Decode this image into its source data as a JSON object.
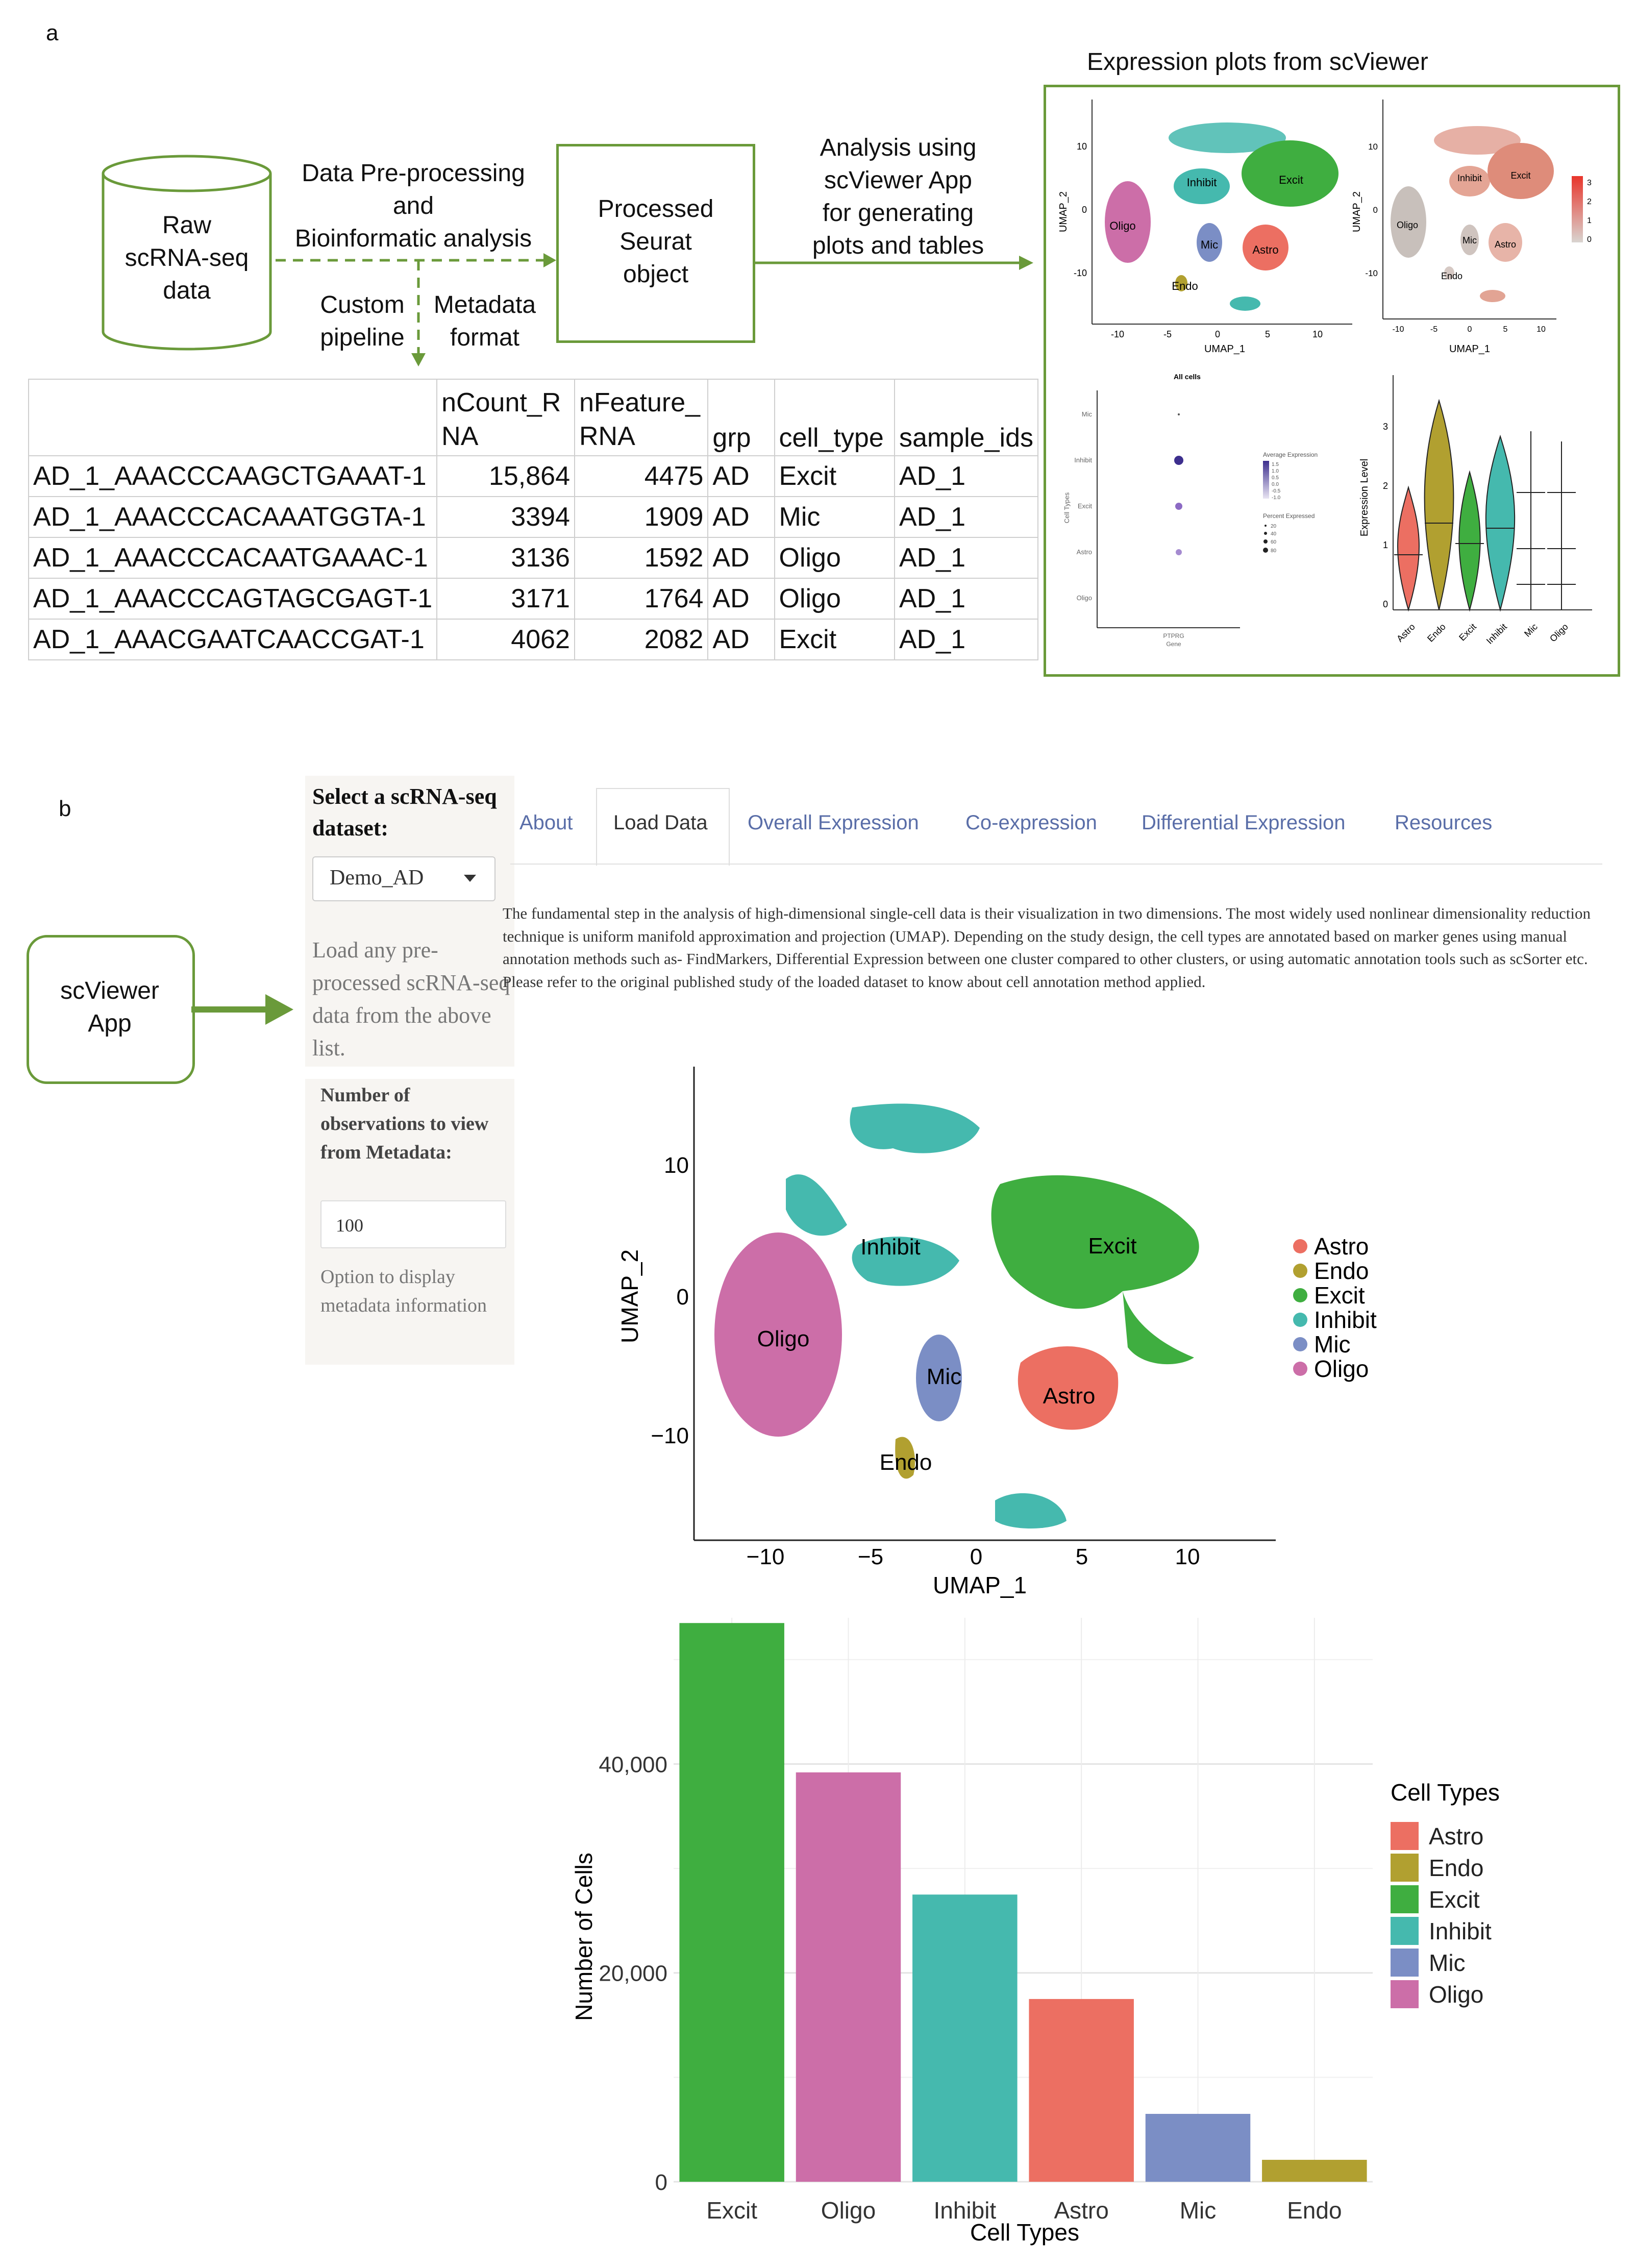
{
  "panel_a": {
    "label": "a",
    "raw_data": [
      "Raw",
      "scRNA-seq",
      "data"
    ],
    "preprocess": [
      "Data Pre-processing",
      "and",
      "Bioinformatic analysis"
    ],
    "custom": [
      "Custom",
      "pipeline"
    ],
    "metadata": [
      "Metadata",
      "format"
    ],
    "seurat": [
      "Processed",
      "Seurat",
      "object"
    ],
    "analysis": [
      "Analysis using",
      "scViewer App",
      "for generating",
      "plots and tables"
    ],
    "expr_title": "Expression plots from scViewer",
    "table": {
      "headers": [
        "",
        "nCount_R\nNA",
        "nFeature_\nRNA",
        "grp",
        "cell_type",
        "sample_ids"
      ],
      "rows": [
        [
          "AD_1_AAACCCAAGCTGAAAT-1",
          "15,864",
          "4475",
          "AD",
          "Excit",
          "AD_1"
        ],
        [
          "AD_1_AAACCCACAAATGGTA-1",
          "3394",
          "1909",
          "AD",
          "Mic",
          "AD_1"
        ],
        [
          "AD_1_AAACCCACAATGAAAC-1",
          "3136",
          "1592",
          "AD",
          "Oligo",
          "AD_1"
        ],
        [
          "AD_1_AAACCCAGTAGCGAGT-1",
          "3171",
          "1764",
          "AD",
          "Oligo",
          "AD_1"
        ],
        [
          "AD_1_AAACGAATCAACCGAT-1",
          "4062",
          "2082",
          "AD",
          "Excit",
          "AD_1"
        ]
      ]
    },
    "mini_umap": {
      "ylabel": "UMAP_2",
      "xlabel": "UMAP_1",
      "xticks": [
        "-10",
        "-5",
        "0",
        "5",
        "10"
      ],
      "yticks": [
        "10",
        "0",
        "-10"
      ],
      "labels": [
        "Inhibit",
        "Excit",
        "Oligo",
        "Mic",
        "Astro",
        "Endo"
      ]
    },
    "feature_plot": {
      "ylabel": "UMAP_2",
      "xlabel": "UMAP_1",
      "xticks": [
        "-10",
        "-5",
        "0",
        "5",
        "10"
      ],
      "yticks": [
        "10",
        "0",
        "-10"
      ],
      "labels": [
        "Inhibit",
        "Excit",
        "Oligo",
        "Mic",
        "Astro",
        "Endo"
      ],
      "scale": [
        "3",
        "2",
        "1",
        "0"
      ]
    },
    "dot_plot": {
      "title": "All cells",
      "rows": [
        "Mic",
        "Inhibit",
        "Excit",
        "Astro",
        "Oligo"
      ],
      "ylabel": "Cell Types",
      "xtick": "PTPRG",
      "xlabel": "Gene",
      "legend_avg": "Average Expression",
      "legend_avg_vals": [
        "1.5",
        "1.0",
        "0.5",
        "0.0",
        "-0.5",
        "-1.0"
      ],
      "legend_pct": "Percent Expressed",
      "legend_pct_vals": [
        "20",
        "40",
        "60",
        "80"
      ]
    },
    "violin": {
      "ylabel": "Expression Level",
      "yticks": [
        "3",
        "2",
        "1",
        "0"
      ],
      "cats": [
        "Astro",
        "Endo",
        "Excit",
        "Inhibit",
        "Mic",
        "Oligo"
      ]
    }
  },
  "panel_b": {
    "label": "b",
    "app": [
      "scViewer",
      "App"
    ],
    "select_label": "Select a scRNA-seq dataset:",
    "dataset": "Demo_AD",
    "load_hint": "Load any pre-processed scRNA-seq data from the above list.",
    "num_label": "Number of observations to view from Metadata:",
    "num_value": "100",
    "option_text": "Option to display metadata information",
    "tabs": [
      "About",
      "Load Data",
      "Overall Expression",
      "Co-expression",
      "Differential Expression",
      "Resources"
    ],
    "description": "The fundamental step in the analysis of high-dimensional single-cell data is their visualization in two dimensions. The most widely used nonlinear dimensionality reduction technique is uniform manifold approximation and projection (UMAP). Depending on the study design, the cell types are annotated based on marker genes using manual annotation methods such as- FindMarkers, Differential Expression between one cluster compared to other clusters, or using automatic annotation tools such as scSorter etc. Please refer to the original published study of the loaded dataset to know about cell annotation method applied.",
    "umap": {
      "xlabel": "UMAP_1",
      "ylabel": "UMAP_2",
      "xticks": [
        "−10",
        "−5",
        "0",
        "5",
        "10"
      ],
      "yticks": [
        "10",
        "0",
        "−10"
      ],
      "labels": [
        "Inhibit",
        "Excit",
        "Oligo",
        "Mic",
        "Astro",
        "Endo"
      ],
      "legend": [
        "Astro",
        "Endo",
        "Excit",
        "Inhibit",
        "Mic",
        "Oligo"
      ]
    }
  },
  "colors": {
    "Astro": "#ec6f62",
    "Endo": "#b1a030",
    "Excit": "#3fae40",
    "Inhibit": "#45b9ae",
    "Mic": "#7b8ec5",
    "Oligo": "#cc6ea8",
    "green_accent": "#6a9a3a",
    "tab_blue": "#5a6ea8"
  },
  "chart_data": {
    "type": "bar",
    "categories": [
      "Excit",
      "Oligo",
      "Inhibit",
      "Astro",
      "Mic",
      "Endo"
    ],
    "values": [
      53500,
      39200,
      27500,
      17500,
      6500,
      2100
    ],
    "xlabel": "Cell Types",
    "ylabel": "Number of Cells",
    "ylim": [
      0,
      54000
    ],
    "yticks": [
      0,
      20000,
      40000
    ],
    "ytick_labels": [
      "0",
      "20,000",
      "40,000"
    ],
    "legend_title": "Cell Types",
    "legend": [
      "Astro",
      "Endo",
      "Excit",
      "Inhibit",
      "Mic",
      "Oligo"
    ],
    "grid": true
  }
}
